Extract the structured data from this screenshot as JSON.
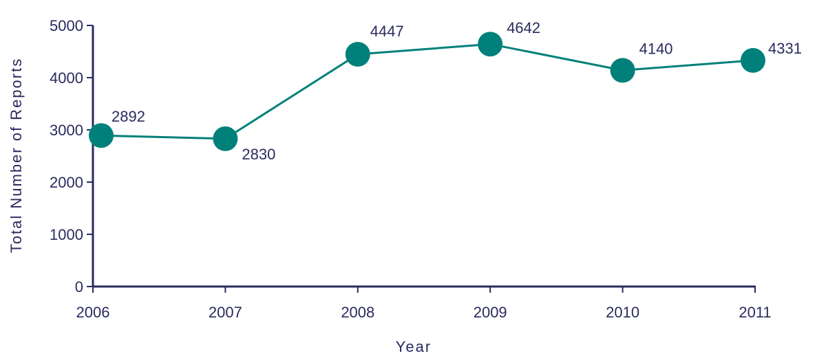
{
  "chart_data": {
    "type": "line",
    "title": "",
    "xlabel": "Year",
    "ylabel": "Total Number of Reports",
    "x": [
      "2006",
      "2007",
      "2008",
      "2009",
      "2010",
      "2011"
    ],
    "series": [
      {
        "values": [
          2892,
          2830,
          4447,
          4642,
          4140,
          4331
        ]
      }
    ],
    "data_labels": [
      "2892",
      "2830",
      "4447",
      "4642",
      "4140",
      "4331"
    ],
    "ylim": [
      0,
      5000
    ],
    "yticks": [
      0,
      1000,
      2000,
      3000,
      4000,
      5000
    ],
    "ytick_labels": [
      "0",
      "1000",
      "2000",
      "3000",
      "4000",
      "5000"
    ],
    "grid": false,
    "legend": "none",
    "colors": {
      "series": "#00807a",
      "axis": "#2a2a5e",
      "text": "#2a2a5e"
    }
  }
}
